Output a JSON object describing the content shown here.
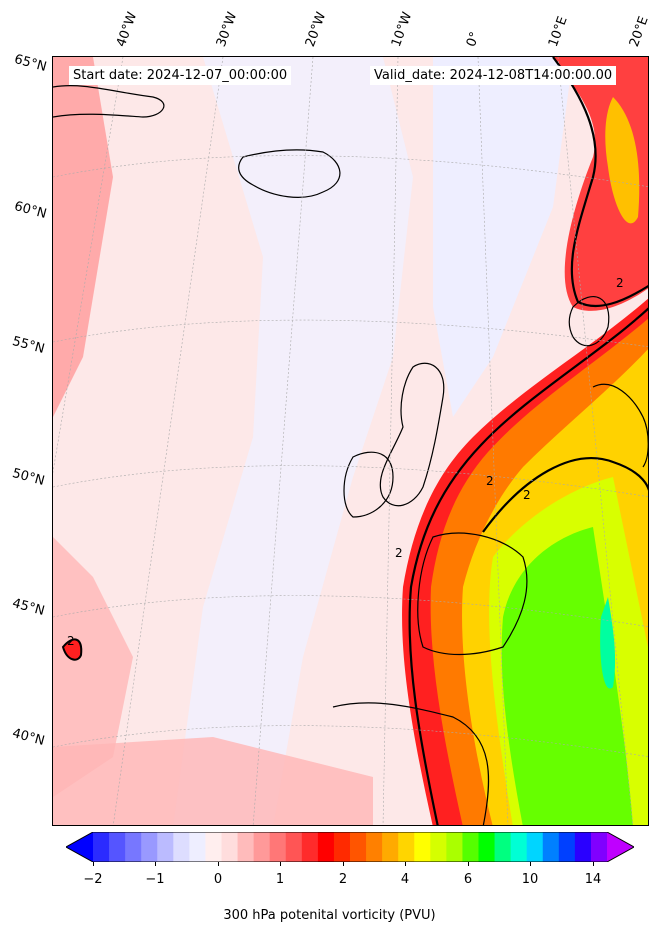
{
  "header": {
    "start_date": "Start date: 2024-12-07_00:00:00",
    "valid_date": "Valid_date: 2024-12-08T14:00:00.00"
  },
  "latitude_labels": [
    "65°N",
    "60°N",
    "55°N",
    "50°N",
    "45°N",
    "40°N"
  ],
  "longitude_labels": [
    "40°W",
    "30°W",
    "20°W",
    "10°W",
    "0°",
    "10°E",
    "20°E"
  ],
  "contour_labels": [
    "2",
    "2",
    "2",
    "2",
    "2"
  ],
  "colorbar": {
    "tick_labels": [
      "−2",
      "−1",
      "0",
      "1",
      "2",
      "4",
      "6",
      "10",
      "14"
    ],
    "label": "300 hPa potenital vorticity (PVU)",
    "colors": [
      "#0000ff",
      "#2b2bff",
      "#5555ff",
      "#7777ff",
      "#9999ff",
      "#bbbbff",
      "#ddddff",
      "#eeeeff",
      "#ffeeee",
      "#ffdddd",
      "#ffbbbb",
      "#ff9999",
      "#ff7777",
      "#ff5555",
      "#ff2b2b",
      "#ff0000",
      "#ff2a00",
      "#ff5500",
      "#ff8000",
      "#ffaa00",
      "#ffd500",
      "#ffff00",
      "#d5ff00",
      "#aaff00",
      "#55ff00",
      "#00ff00",
      "#00ff80",
      "#00ffd5",
      "#00d5ff",
      "#0080ff",
      "#0040ff",
      "#2a00ff",
      "#8000ff",
      "#bf00ff"
    ]
  }
}
